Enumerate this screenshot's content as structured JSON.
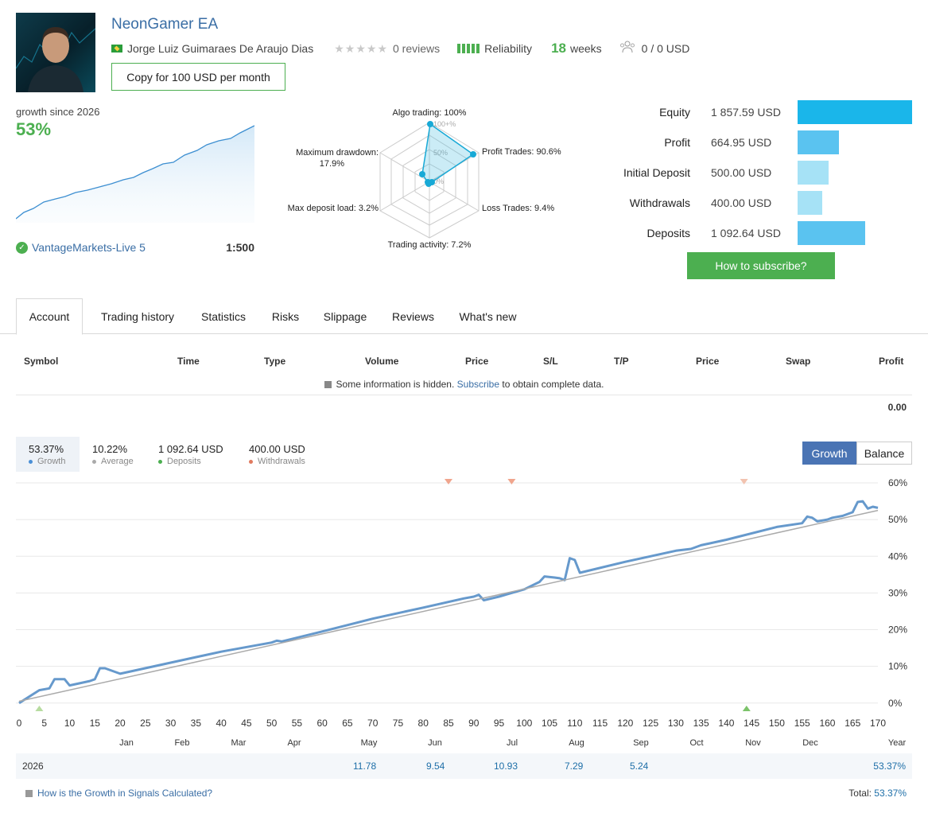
{
  "header": {
    "title": "NeonGamer EA",
    "author": "Jorge Luiz Guimaraes De Araujo Dias",
    "reviews": "0 reviews",
    "reliability": "Reliability",
    "weeks_num": "18",
    "weeks_label": "weeks",
    "subscribers": "0 / 0 USD",
    "copy_button": "Copy for 100 USD per month"
  },
  "growth": {
    "since_label": "growth since 2026",
    "percent": "53%",
    "broker": "VantageMarkets-Live 5",
    "leverage": "1:500"
  },
  "radar": {
    "algo": "Algo trading: 100%",
    "profit_trades": "Profit Trades: 90.6%",
    "loss_trades": "Loss Trades: 9.4%",
    "activity": "Trading activity: 7.2%",
    "max_deposit": "Max deposit load: 3.2%",
    "max_dd_1": "Maximum drawdown:",
    "max_dd_2": "17.9%",
    "ring_100": "100+%",
    "ring_50": "50%",
    "ring_0": "0%"
  },
  "stats": [
    {
      "label": "Equity",
      "value": "1 857.59 USD",
      "fraction": 1.0,
      "color": "#1ab6ea"
    },
    {
      "label": "Profit",
      "value": "664.95 USD",
      "fraction": 0.358,
      "color": "#5ac3f0"
    },
    {
      "label": "Initial Deposit",
      "value": "500.00 USD",
      "fraction": 0.269,
      "color": "#a6e2f6"
    },
    {
      "label": "Withdrawals",
      "value": "400.00 USD",
      "fraction": 0.215,
      "color": "#a6e2f6"
    },
    {
      "label": "Deposits",
      "value": "1 092.64 USD",
      "fraction": 0.588,
      "color": "#5ac3f0"
    }
  ],
  "how_button": "How to subscribe?",
  "tabs": [
    "Account",
    "Trading history",
    "Statistics",
    "Risks",
    "Slippage",
    "Reviews",
    "What's new"
  ],
  "table": {
    "headers": [
      "Symbol",
      "Time",
      "Type",
      "Volume",
      "Price",
      "S/L",
      "T/P",
      "Price",
      "Swap",
      "Profit"
    ],
    "hidden_pre": "Some information is hidden.",
    "hidden_link": "Subscribe",
    "hidden_post": "to obtain complete data.",
    "total_profit": "0.00"
  },
  "summary": {
    "growth_val": "53.37%",
    "growth_lbl": "Growth",
    "average_val": "10.22%",
    "average_lbl": "Average",
    "deposits_val": "1 092.64 USD",
    "deposits_lbl": "Deposits",
    "withdrawals_val": "400.00 USD",
    "withdrawals_lbl": "Withdrawals",
    "toggle_growth": "Growth",
    "toggle_balance": "Balance"
  },
  "colors": {
    "accent_blue": "#3a6ea5",
    "green": "#4caf50",
    "growth_line": "#6699cc",
    "toggle_active": "#4a74b4"
  },
  "chart_data": {
    "type": "line",
    "xlabel": "",
    "ylabel": "",
    "xlim": [
      0,
      170
    ],
    "ylim": [
      -2,
      60
    ],
    "x_ticks": [
      0,
      5,
      10,
      15,
      20,
      25,
      30,
      35,
      40,
      45,
      50,
      55,
      60,
      65,
      70,
      75,
      80,
      85,
      90,
      95,
      100,
      105,
      110,
      115,
      120,
      125,
      130,
      135,
      140,
      145,
      150,
      155,
      160,
      165,
      170
    ],
    "y_ticks": [
      "0%",
      "10%",
      "20%",
      "30%",
      "40%",
      "50%",
      "60%"
    ],
    "months": [
      "Jan",
      "Feb",
      "Mar",
      "Apr",
      "May",
      "Jun",
      "Jul",
      "Aug",
      "Sep",
      "Oct",
      "Nov",
      "Dec",
      "Year"
    ],
    "series": [
      {
        "name": "Growth",
        "x": [
          0,
          4,
          6,
          7,
          9,
          10,
          14,
          15,
          16,
          17,
          20,
          30,
          40,
          50,
          51,
          52,
          60,
          70,
          80,
          88,
          90,
          91,
          92,
          95,
          100,
          103,
          104,
          106,
          107,
          108,
          109,
          110,
          111,
          120,
          130,
          133,
          135,
          140,
          150,
          155,
          156,
          157,
          158,
          160,
          161,
          163,
          165,
          166,
          167,
          168,
          169,
          170
        ],
        "y": [
          0,
          3.5,
          4,
          6.5,
          6.5,
          4.8,
          6,
          6.5,
          9.5,
          9.5,
          8,
          11,
          14,
          16.5,
          17,
          16.8,
          19.5,
          23,
          26,
          28.5,
          29,
          29.5,
          28,
          29,
          31,
          33,
          34.5,
          34.2,
          34,
          33.5,
          39.5,
          39,
          35.5,
          38.5,
          41.5,
          42,
          43,
          44.5,
          48,
          49,
          50.8,
          50.5,
          49.5,
          50,
          50.5,
          51,
          52,
          54.8,
          55,
          53,
          53.5,
          53.2
        ]
      },
      {
        "name": "Average",
        "x": [
          0,
          170
        ],
        "y": [
          0.5,
          52.5
        ]
      }
    ],
    "year_row": {
      "year": "2026",
      "may": "11.78",
      "jun": "9.54",
      "jul": "10.93",
      "aug": "7.29",
      "sep": "5.24",
      "total": "53.37%"
    }
  },
  "footer": {
    "calc_link": "How is the Growth in Signals Calculated?",
    "total_label": "Total:",
    "total_value": "53.37%"
  }
}
